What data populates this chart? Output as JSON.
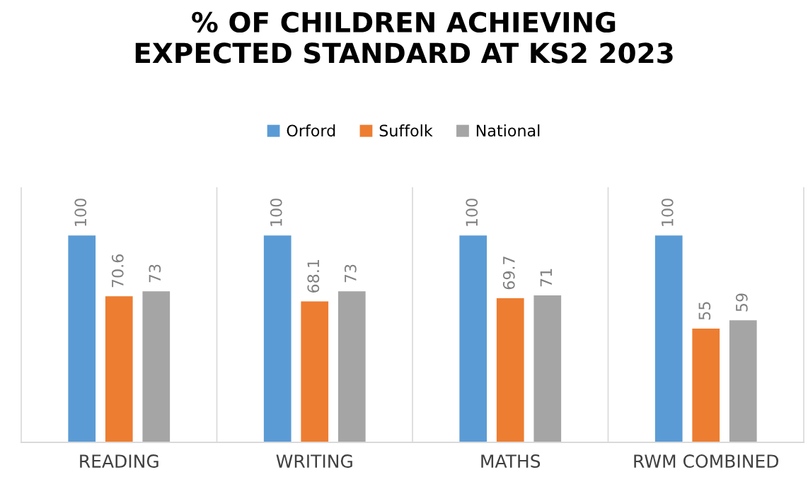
{
  "chart_data": {
    "type": "bar",
    "title": "% OF CHILDREN ACHIEVING\nEXPECTED STANDARD AT KS2 2023",
    "categories": [
      "READING",
      "WRITING",
      "MATHS",
      "RWM COMBINED"
    ],
    "series": [
      {
        "name": "Orford",
        "color": "#5b9bd5",
        "values": [
          100,
          100,
          100,
          100
        ]
      },
      {
        "name": "Suffolk",
        "color": "#ed7d31",
        "values": [
          70.6,
          68.1,
          69.7,
          55
        ]
      },
      {
        "name": "National",
        "color": "#a5a5a5",
        "values": [
          73,
          73,
          71,
          59
        ]
      }
    ],
    "ylim": [
      0,
      125
    ],
    "data_labels": true,
    "legend": "top"
  }
}
